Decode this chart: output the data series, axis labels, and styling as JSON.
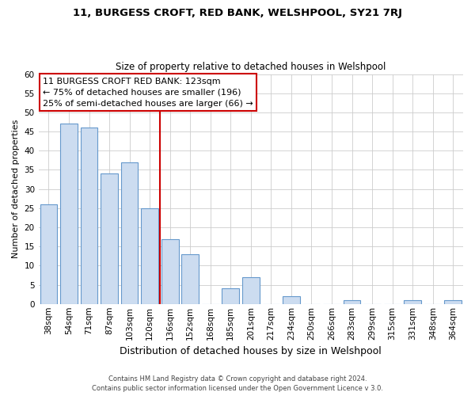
{
  "title": "11, BURGESS CROFT, RED BANK, WELSHPOOL, SY21 7RJ",
  "subtitle": "Size of property relative to detached houses in Welshpool",
  "xlabel": "Distribution of detached houses by size in Welshpool",
  "ylabel": "Number of detached properties",
  "footnote1": "Contains HM Land Registry data © Crown copyright and database right 2024.",
  "footnote2": "Contains public sector information licensed under the Open Government Licence v 3.0.",
  "bar_labels": [
    "38sqm",
    "54sqm",
    "71sqm",
    "87sqm",
    "103sqm",
    "120sqm",
    "136sqm",
    "152sqm",
    "168sqm",
    "185sqm",
    "201sqm",
    "217sqm",
    "234sqm",
    "250sqm",
    "266sqm",
    "283sqm",
    "299sqm",
    "315sqm",
    "331sqm",
    "348sqm",
    "364sqm"
  ],
  "bar_values": [
    26,
    47,
    46,
    34,
    37,
    25,
    17,
    13,
    0,
    4,
    7,
    0,
    2,
    0,
    0,
    1,
    0,
    0,
    1,
    0,
    1
  ],
  "bar_color": "#ccdcf0",
  "bar_edge_color": "#6699cc",
  "vline_x": 5.5,
  "vline_color": "#cc0000",
  "annotation_title": "11 BURGESS CROFT RED BANK: 123sqm",
  "annotation_line1": "← 75% of detached houses are smaller (196)",
  "annotation_line2": "25% of semi-detached houses are larger (66) →",
  "annotation_box_color": "#ffffff",
  "annotation_box_edge": "#cc0000",
  "ylim": [
    0,
    60
  ],
  "yticks": [
    0,
    5,
    10,
    15,
    20,
    25,
    30,
    35,
    40,
    45,
    50,
    55,
    60
  ],
  "background_color": "#ffffff",
  "grid_color": "#cccccc",
  "title_fontsize": 9.5,
  "subtitle_fontsize": 8.5,
  "ylabel_fontsize": 8,
  "xlabel_fontsize": 9,
  "tick_fontsize": 7.5,
  "annotation_fontsize": 8,
  "footnote_fontsize": 6
}
